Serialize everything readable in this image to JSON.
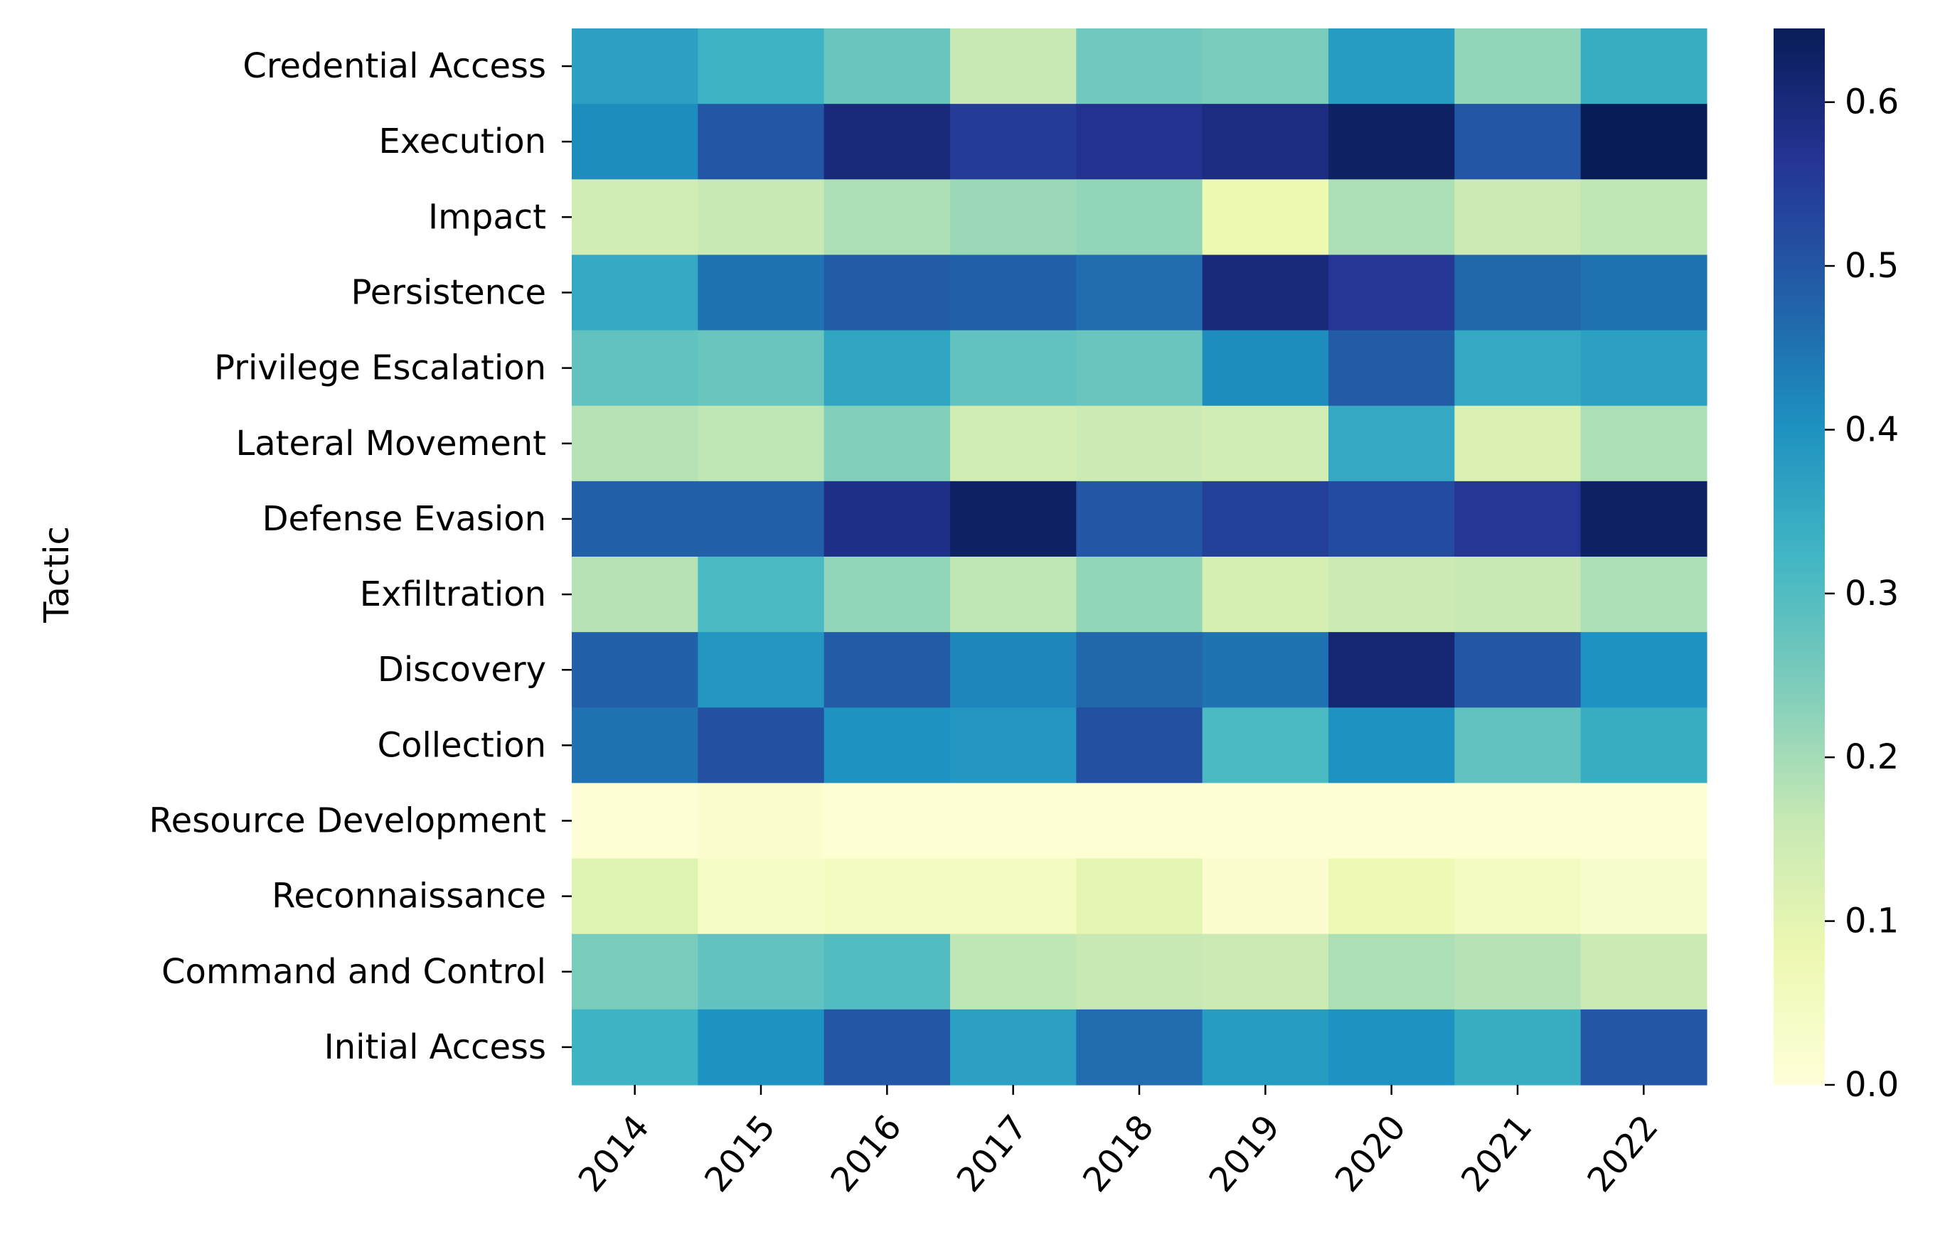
{
  "chart_data": {
    "type": "heatmap",
    "ylabel": "Tactic",
    "xlabel": "",
    "x": [
      "2014",
      "2015",
      "2016",
      "2017",
      "2018",
      "2019",
      "2020",
      "2021",
      "2022"
    ],
    "y": [
      "Credential Access",
      "Execution",
      "Impact",
      "Persistence",
      "Privilege Escalation",
      "Lateral Movement",
      "Defense Evasion",
      "Exfiltration",
      "Discovery",
      "Collection",
      "Resource Development",
      "Reconnaissance",
      "Command and Control",
      "Initial Access"
    ],
    "values": [
      [
        0.37,
        0.33,
        0.27,
        0.16,
        0.26,
        0.25,
        0.38,
        0.22,
        0.34
      ],
      [
        0.41,
        0.5,
        0.6,
        0.55,
        0.57,
        0.59,
        0.63,
        0.5,
        0.645
      ],
      [
        0.14,
        0.16,
        0.19,
        0.21,
        0.22,
        0.08,
        0.19,
        0.15,
        0.17
      ],
      [
        0.35,
        0.45,
        0.49,
        0.48,
        0.46,
        0.6,
        0.56,
        0.47,
        0.45
      ],
      [
        0.28,
        0.27,
        0.36,
        0.28,
        0.27,
        0.41,
        0.49,
        0.35,
        0.37
      ],
      [
        0.18,
        0.17,
        0.24,
        0.14,
        0.15,
        0.14,
        0.35,
        0.12,
        0.19
      ],
      [
        0.48,
        0.48,
        0.58,
        0.63,
        0.5,
        0.54,
        0.52,
        0.56,
        0.63
      ],
      [
        0.18,
        0.31,
        0.22,
        0.17,
        0.22,
        0.13,
        0.15,
        0.16,
        0.19
      ],
      [
        0.48,
        0.39,
        0.49,
        0.42,
        0.47,
        0.45,
        0.61,
        0.5,
        0.4
      ],
      [
        0.45,
        0.51,
        0.4,
        0.39,
        0.51,
        0.31,
        0.4,
        0.28,
        0.34
      ],
      [
        0.01,
        0.02,
        0.01,
        0.01,
        0.01,
        0.01,
        0.01,
        0.01,
        0.01
      ],
      [
        0.11,
        0.04,
        0.05,
        0.05,
        0.1,
        0.02,
        0.07,
        0.05,
        0.03
      ],
      [
        0.25,
        0.28,
        0.3,
        0.17,
        0.16,
        0.15,
        0.19,
        0.18,
        0.15
      ],
      [
        0.33,
        0.4,
        0.5,
        0.37,
        0.46,
        0.38,
        0.4,
        0.34,
        0.5
      ]
    ],
    "colorbar": {
      "min": 0,
      "max": 0.645,
      "ticks": [
        "0.0",
        "0.1",
        "0.2",
        "0.3",
        "0.4",
        "0.5",
        "0.6"
      ],
      "tick_values": [
        0,
        0.1,
        0.2,
        0.3,
        0.4,
        0.5,
        0.6
      ],
      "colormap": "YlGnBu",
      "colors": [
        "#ffffd9",
        "#edf8b1",
        "#c7e9b4",
        "#7fcdbb",
        "#41b6c4",
        "#1d91c0",
        "#225ea8",
        "#253494",
        "#081d58"
      ]
    },
    "grid": false
  }
}
